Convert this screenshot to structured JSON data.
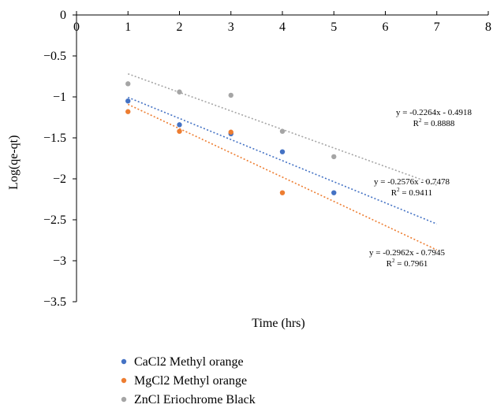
{
  "chart_data": {
    "type": "scatter",
    "title": "",
    "xlabel": "Time (hrs)",
    "ylabel": "Log(qe-qt)",
    "xlim": [
      0,
      8
    ],
    "ylim": [
      -3.5,
      0
    ],
    "x_ticks": [
      "0",
      "1",
      "2",
      "3",
      "4",
      "5",
      "6",
      "7",
      "8"
    ],
    "y_ticks": [
      "0",
      "−0.5",
      "−1",
      "−1.5",
      "−2",
      "−2.5",
      "−3",
      "−3.5"
    ],
    "x_tick_values": [
      0,
      1,
      2,
      3,
      4,
      5,
      6,
      7,
      8
    ],
    "y_tick_values": [
      0,
      -0.5,
      -1,
      -1.5,
      -2,
      -2.5,
      -3,
      -3.5
    ],
    "grid": false,
    "legend_position": "bottom-left",
    "series": [
      {
        "name": "CaCl2 Methyl orange",
        "color": "#4472C4",
        "x": [
          1,
          2,
          3,
          4,
          5
        ],
        "y": [
          -1.05,
          -1.34,
          -1.45,
          -1.67,
          -2.17
        ],
        "trendline": {
          "slope": -0.2576,
          "intercept": -0.7478,
          "x_range": [
            1,
            7
          ],
          "equation": "y = -0.2576x - 0.7478",
          "r2_label": "R",
          "r2_exp": "2",
          "r2_value": " = 0.9411"
        }
      },
      {
        "name": "MgCl2 Methyl orange",
        "color": "#ED7D31",
        "x": [
          1,
          2,
          3,
          4
        ],
        "y": [
          -1.18,
          -1.42,
          -1.43,
          -2.17
        ],
        "trendline": {
          "slope": -0.2962,
          "intercept": -0.7945,
          "x_range": [
            1,
            7
          ],
          "equation": "y = -0.2962x - 0.7945",
          "r2_label": "R",
          "r2_exp": "2",
          "r2_value": " = 0.7961"
        }
      },
      {
        "name": "ZnCl Eriochrome Black",
        "color": "#A5A5A5",
        "x": [
          1,
          2,
          3,
          4,
          5
        ],
        "y": [
          -0.84,
          -0.94,
          -0.98,
          -1.42,
          -1.73
        ],
        "trendline": {
          "slope": -0.2264,
          "intercept": -0.4918,
          "x_range": [
            1,
            7
          ],
          "equation": "y = -0.2264x - 0.4918",
          "r2_label": "R",
          "r2_exp": "2",
          "r2_value": " = 0.8888"
        }
      }
    ]
  }
}
